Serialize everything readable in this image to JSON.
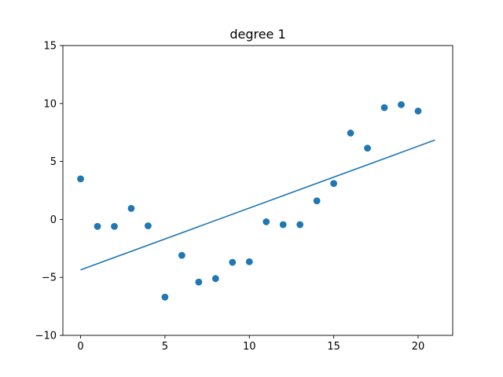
{
  "chart_data": {
    "type": "scatter",
    "title": "degree 1",
    "xlabel": "",
    "ylabel": "",
    "xlim": [
      -1.05,
      22.05
    ],
    "ylim": [
      -10,
      15
    ],
    "xticks": [
      0,
      5,
      10,
      15,
      20
    ],
    "yticks": [
      -10,
      -5,
      0,
      5,
      10,
      15
    ],
    "grid": false,
    "colors": {
      "points": "#1f77b4",
      "line": "#1f77b4"
    },
    "series": [
      {
        "type": "scatter",
        "x": [
          0,
          1,
          2,
          3,
          4,
          5,
          6,
          7,
          8,
          9,
          10,
          11,
          12,
          13,
          14,
          15,
          16,
          17,
          18,
          19,
          20
        ],
        "y": [
          3.5,
          -0.6,
          -0.6,
          0.95,
          -0.55,
          -6.7,
          -3.1,
          -5.4,
          -5.1,
          -3.7,
          -3.65,
          -0.2,
          -0.45,
          -0.45,
          1.6,
          3.1,
          7.45,
          6.15,
          9.65,
          9.9,
          9.35
        ]
      },
      {
        "type": "line",
        "x": [
          0,
          21
        ],
        "y": [
          -4.35,
          6.85
        ]
      }
    ]
  }
}
